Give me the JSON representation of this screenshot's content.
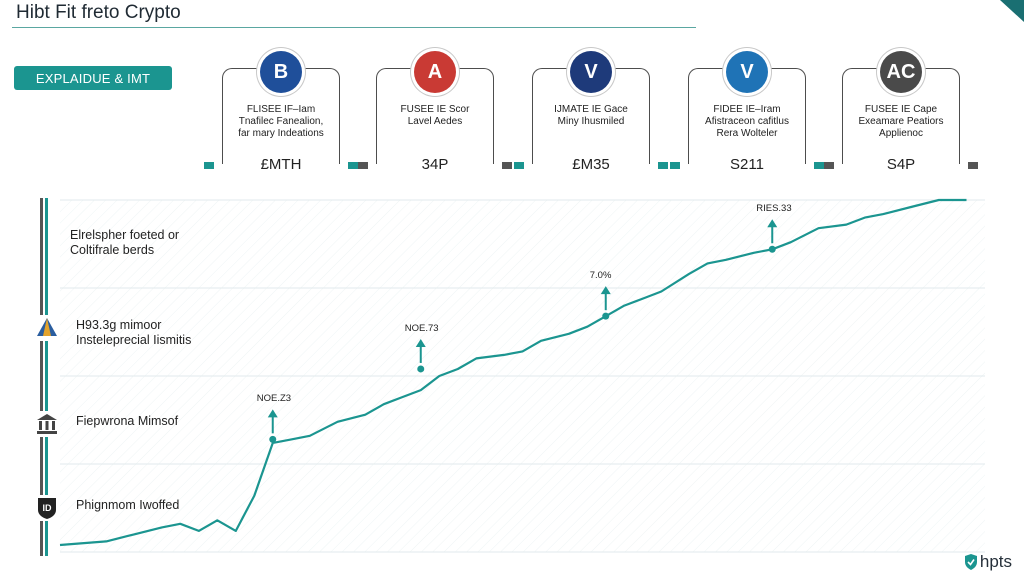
{
  "header": {
    "title": "Hibt Fit freto Crypto",
    "badge": "EXPLAIDUE & IMT"
  },
  "cards": [
    {
      "logo_text": "B",
      "logo_color": "#1f4f9a",
      "logo_icon": "b-coin-icon",
      "desc": [
        "FLISEE IF–Iam",
        "Tnafilec Fanealion,",
        "far mary Indeations"
      ],
      "value": "£MTH",
      "tick_color": "#1b9590"
    },
    {
      "logo_text": "A",
      "logo_color": "#c93a34",
      "logo_icon": "stop-sign-icon",
      "desc": [
        "FUSEE IE Scor",
        "Lavel Aedes"
      ],
      "value": "34P",
      "tick_color": "#555555"
    },
    {
      "logo_text": "V",
      "logo_color": "#1e3a7a",
      "logo_icon": "v-shield-icon",
      "desc": [
        "IJMATE IE Gace",
        "Miny Ihusmiled"
      ],
      "value": "£M35",
      "tick_color": "#1b9590"
    },
    {
      "logo_text": "V",
      "logo_color": "#1f73b6",
      "logo_icon": "v-coin-icon",
      "desc": [
        "FIDEE IE–Iram",
        "Afistraceon cafitlus",
        "Rera Wolteler"
      ],
      "value": "S211",
      "tick_color": "#1b9590"
    },
    {
      "logo_text": "AC",
      "logo_color": "#4a4a4a",
      "logo_icon": "ac-coin-icon",
      "desc": [
        "FUSEE IE Cape",
        "Exeamare Peatiors",
        "Applienoc"
      ],
      "value": "S4P",
      "tick_color": "#555555"
    }
  ],
  "side_labels": [
    {
      "text": [
        "Elrelspher foeted or",
        "Coltifrale berds"
      ],
      "icon": null
    },
    {
      "text": [
        "H93.3g mimoor",
        "Insteleprecial Iismitis"
      ],
      "icon": "pyramid-icon"
    },
    {
      "text": [
        "Fiepwrona Mimsof"
      ],
      "icon": "bank-icon"
    },
    {
      "text": [
        "Phignmom Iwoffed"
      ],
      "icon": "shield-id-icon"
    }
  ],
  "footer": {
    "brand": "hpts",
    "icon": "shield-icon"
  },
  "chart_data": {
    "type": "line",
    "title": "",
    "xlabel": "",
    "ylabel": "",
    "grid": true,
    "xlim": [
      0,
      100
    ],
    "ylim": [
      0,
      100
    ],
    "series": [
      {
        "color": "#1b9590",
        "x": [
          0,
          5,
          8,
          11,
          13,
          15,
          17,
          19,
          21,
          23,
          25,
          27,
          30,
          33,
          35,
          37,
          39,
          41,
          43,
          45,
          48,
          50,
          52,
          55,
          57,
          59,
          61,
          63,
          65,
          68,
          70,
          72,
          75,
          77,
          79,
          82,
          85,
          87,
          89,
          92,
          95,
          98
        ],
        "y": [
          2,
          3,
          5,
          7,
          8,
          6,
          9,
          6,
          16,
          31,
          32,
          33,
          37,
          39,
          42,
          44,
          46,
          50,
          52,
          55,
          56,
          57,
          60,
          62,
          64,
          67,
          70,
          72,
          74,
          79,
          82,
          83,
          85,
          86,
          88,
          92,
          93,
          95,
          96,
          98,
          101,
          105
        ]
      }
    ],
    "annotations": [
      {
        "label": "NOE.Z3",
        "x": 23,
        "y": 32
      },
      {
        "label": "NOE.73",
        "x": 39,
        "y": 52
      },
      {
        "label": "7.0%",
        "x": 59,
        "y": 67
      },
      {
        "label": "RIES.33",
        "x": 77,
        "y": 86
      }
    ]
  }
}
